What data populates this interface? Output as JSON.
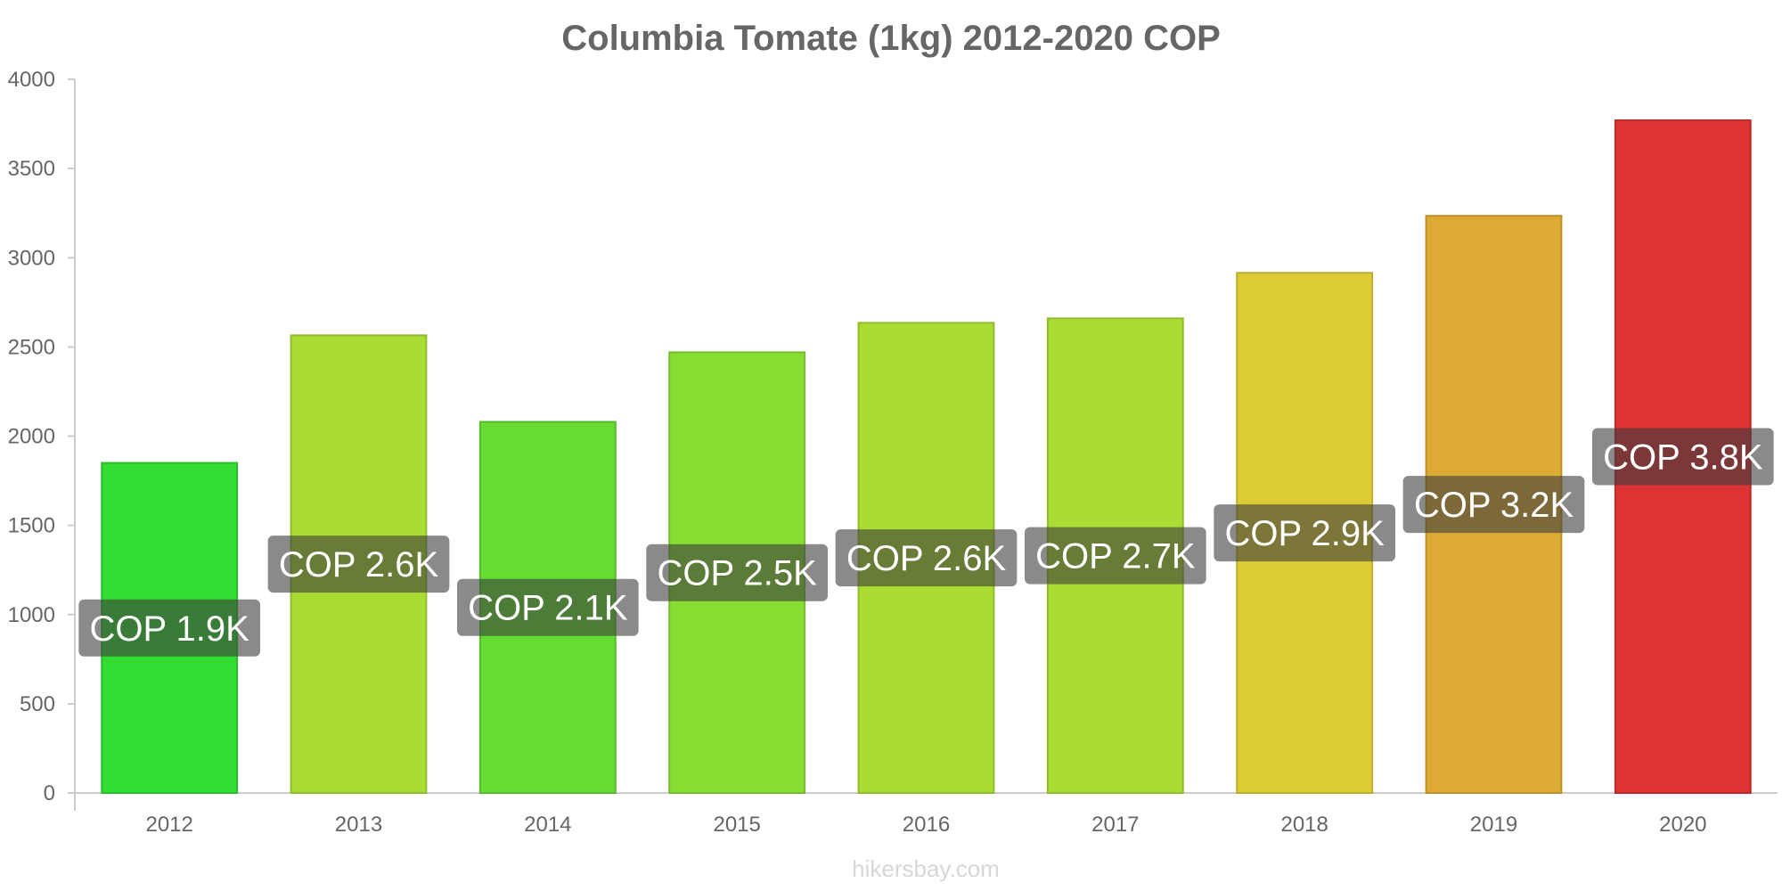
{
  "chart_data": {
    "type": "bar",
    "title": "Columbia Tomate (1kg) 2012-2020 COP",
    "xlabel": "",
    "ylabel": "",
    "categories": [
      "2012",
      "2013",
      "2014",
      "2015",
      "2016",
      "2017",
      "2018",
      "2019",
      "2020"
    ],
    "values": [
      1850,
      2565,
      2080,
      2470,
      2635,
      2660,
      2915,
      3235,
      3770
    ],
    "data_labels": [
      "COP 1.9K",
      "COP 2.6K",
      "COP 2.1K",
      "COP 2.5K",
      "COP 2.6K",
      "COP 2.7K",
      "COP 2.9K",
      "COP 3.2K",
      "COP 3.8K"
    ],
    "bar_colors": [
      "#33dd33",
      "#aadd33",
      "#66dd33",
      "#88dd33",
      "#aadd33",
      "#aadd33",
      "#ddcc33",
      "#ddaa33",
      "#dd3333"
    ],
    "ylim": [
      0,
      4000
    ],
    "yticks": [
      0,
      500,
      1000,
      1500,
      2000,
      2500,
      3000,
      3500,
      4000
    ],
    "grid": false,
    "legend": "none"
  },
  "watermark": "hikersbay.com"
}
